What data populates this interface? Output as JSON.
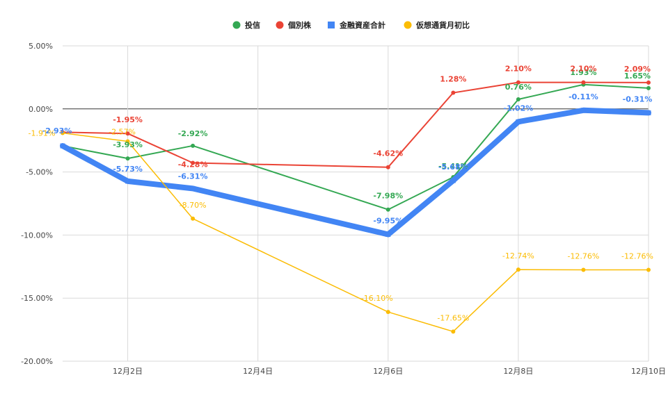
{
  "chart_data": {
    "type": "line",
    "x": [
      "12月1日",
      "12月2日",
      "12月3日",
      "12月4日",
      "12月5日",
      "12月6日",
      "12月7日",
      "12月8日",
      "12月9日",
      "12月10日"
    ],
    "x_tick_labels": [
      "12月2日",
      "12月4日",
      "12月6日",
      "12月8日",
      "12月10日"
    ],
    "y_ticks": [
      5,
      0,
      -5,
      -10,
      -15,
      -20
    ],
    "y_tick_labels": [
      "5.00%",
      "0.00%",
      "-5.00%",
      "-10.00%",
      "-15.00%",
      "-20.00%"
    ],
    "ylim": [
      -20,
      5
    ],
    "grid": true,
    "legend_position": "top",
    "series": [
      {
        "name": "投信",
        "color": "#34a853",
        "marker": "circle",
        "x": [
          "12月1日",
          "12月2日",
          "12月3日",
          "12月6日",
          "12月7日",
          "12月8日",
          "12月9日",
          "12月10日"
        ],
        "values": [
          -2.93,
          -3.93,
          -2.92,
          -7.98,
          -5.41,
          0.76,
          1.93,
          1.65
        ],
        "labels": [
          "",
          "-3.93%",
          "-2.92%",
          "-7.98%",
          "-5.41%",
          "0.76%",
          "1.93%",
          "1.65%"
        ]
      },
      {
        "name": "個別株",
        "color": "#ea4335",
        "marker": "circle",
        "x": [
          "12月1日",
          "12月2日",
          "12月3日",
          "12月6日",
          "12月7日",
          "12月8日",
          "12月9日",
          "12月10日"
        ],
        "values": [
          -1.85,
          -1.95,
          -4.28,
          -4.62,
          1.28,
          2.1,
          2.1,
          2.09
        ],
        "labels": [
          "",
          "-1.95%",
          "-4.28%",
          "-4.62%",
          "1.28%",
          "2.10%",
          "2.10%",
          "2.09%"
        ]
      },
      {
        "name": "金融資産合計",
        "color": "#4285f4",
        "marker": "square",
        "x": [
          "12月1日",
          "12月2日",
          "12月3日",
          "12月6日",
          "12月7日",
          "12月8日",
          "12月9日",
          "12月10日"
        ],
        "values": [
          -2.93,
          -5.73,
          -6.31,
          -9.95,
          -5.68,
          -1.02,
          -0.11,
          -0.31
        ],
        "labels": [
          "-2.93%",
          "-5.73%",
          "-6.31%",
          "-9.95%",
          "-5.68%",
          "-1.02%",
          "-0.11%",
          "-0.31%"
        ]
      },
      {
        "name": "仮想通貨月初比",
        "color": "#fbbc04",
        "marker": "circle",
        "x": [
          "12月1日",
          "12月2日",
          "12月3日",
          "12月6日",
          "12月7日",
          "12月8日",
          "12月9日",
          "12月10日"
        ],
        "values": [
          -1.91,
          -2.57,
          -8.7,
          -16.1,
          -17.65,
          -12.74,
          -12.76,
          -12.76
        ],
        "labels": [
          "-1.91%",
          "-2.57%",
          "-8.70%",
          "-16.10%",
          "-17.65%",
          "-12.74%",
          "-12.76%",
          "-12.76%"
        ]
      }
    ]
  }
}
